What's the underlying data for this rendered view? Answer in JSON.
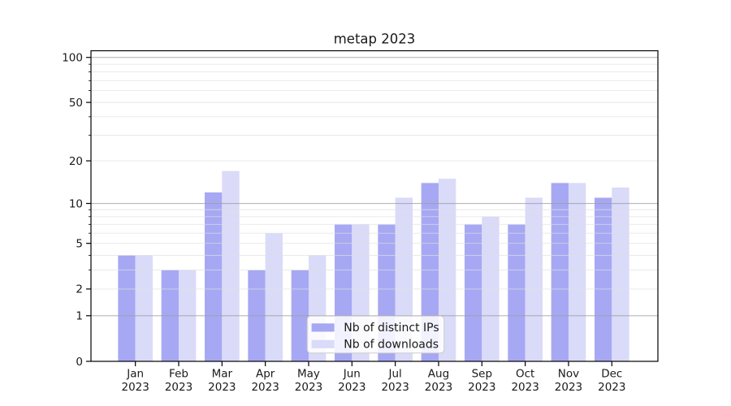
{
  "chart_data": {
    "type": "bar",
    "title": "metap 2023",
    "categories": [
      "Jan",
      "Feb",
      "Mar",
      "Apr",
      "May",
      "Jun",
      "Jul",
      "Aug",
      "Sep",
      "Oct",
      "Nov",
      "Dec"
    ],
    "category_year_label": "2023",
    "series": [
      {
        "name": "Nb of distinct IPs",
        "color": "#a7a8f3",
        "values": [
          4,
          3,
          12,
          3,
          3,
          7,
          7,
          14,
          7,
          7,
          14,
          11
        ]
      },
      {
        "name": "Nb of downloads",
        "color": "#dadaf9",
        "values": [
          4,
          3,
          17,
          6,
          4,
          7,
          11,
          15,
          8,
          11,
          14,
          13
        ]
      }
    ],
    "yscale": "log1p",
    "ylim": [
      0,
      110
    ],
    "yticks_labeled": [
      0,
      1,
      2,
      5,
      10,
      20,
      50,
      100
    ],
    "gridlines_major": [
      1,
      10,
      100
    ],
    "gridlines_minor": [
      2,
      3,
      4,
      5,
      6,
      7,
      8,
      9,
      20,
      30,
      40,
      50,
      60,
      70,
      80,
      90
    ],
    "grid": true,
    "legend": {
      "position": "lower center",
      "entries": [
        "Nb of distinct IPs",
        "Nb of downloads"
      ]
    },
    "xlabel": "",
    "ylabel": "",
    "colors": {
      "grid_major": "#9e9e9e",
      "grid_minor": "#e0e0e0",
      "spine": "#000000",
      "text": "#1a1a1a",
      "legend_border": "#cccccc",
      "legend_fill": "rgba(255,255,255,0.85)"
    }
  }
}
